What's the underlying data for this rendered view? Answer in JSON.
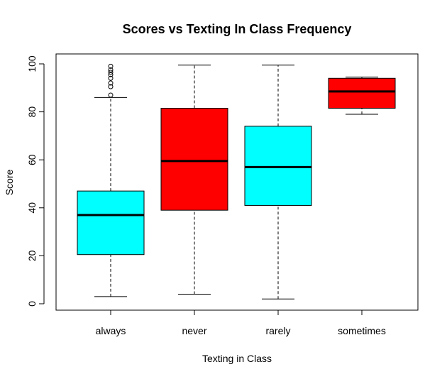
{
  "chart_data": {
    "type": "boxplot",
    "title": "Scores vs Texting In Class Frequency",
    "xlabel": "Texting in Class",
    "ylabel": "Score",
    "ylim": [
      0,
      100
    ],
    "yticks": [
      0,
      20,
      40,
      60,
      80,
      100
    ],
    "grid": false,
    "legend": "none",
    "categories": [
      "always",
      "never",
      "rarely",
      "sometimes"
    ],
    "boxes": [
      {
        "category": "always",
        "min": 3,
        "q1": 20.5,
        "median": 37,
        "q3": 47,
        "max": 86,
        "outliers": [
          87,
          90.5,
          92,
          94,
          95.5,
          96.5,
          97.5,
          99
        ],
        "color": "#00FFFF"
      },
      {
        "category": "never",
        "min": 4,
        "q1": 39,
        "median": 59.5,
        "q3": 81.5,
        "max": 99.5,
        "outliers": [],
        "color": "#FF0000"
      },
      {
        "category": "rarely",
        "min": 2,
        "q1": 41,
        "median": 57,
        "q3": 74,
        "max": 99.5,
        "outliers": [],
        "color": "#00FFFF"
      },
      {
        "category": "sometimes",
        "min": 79,
        "q1": 81.5,
        "median": 88.5,
        "q3": 94,
        "max": 94.5,
        "outliers": [],
        "color": "#FF0000"
      }
    ]
  }
}
